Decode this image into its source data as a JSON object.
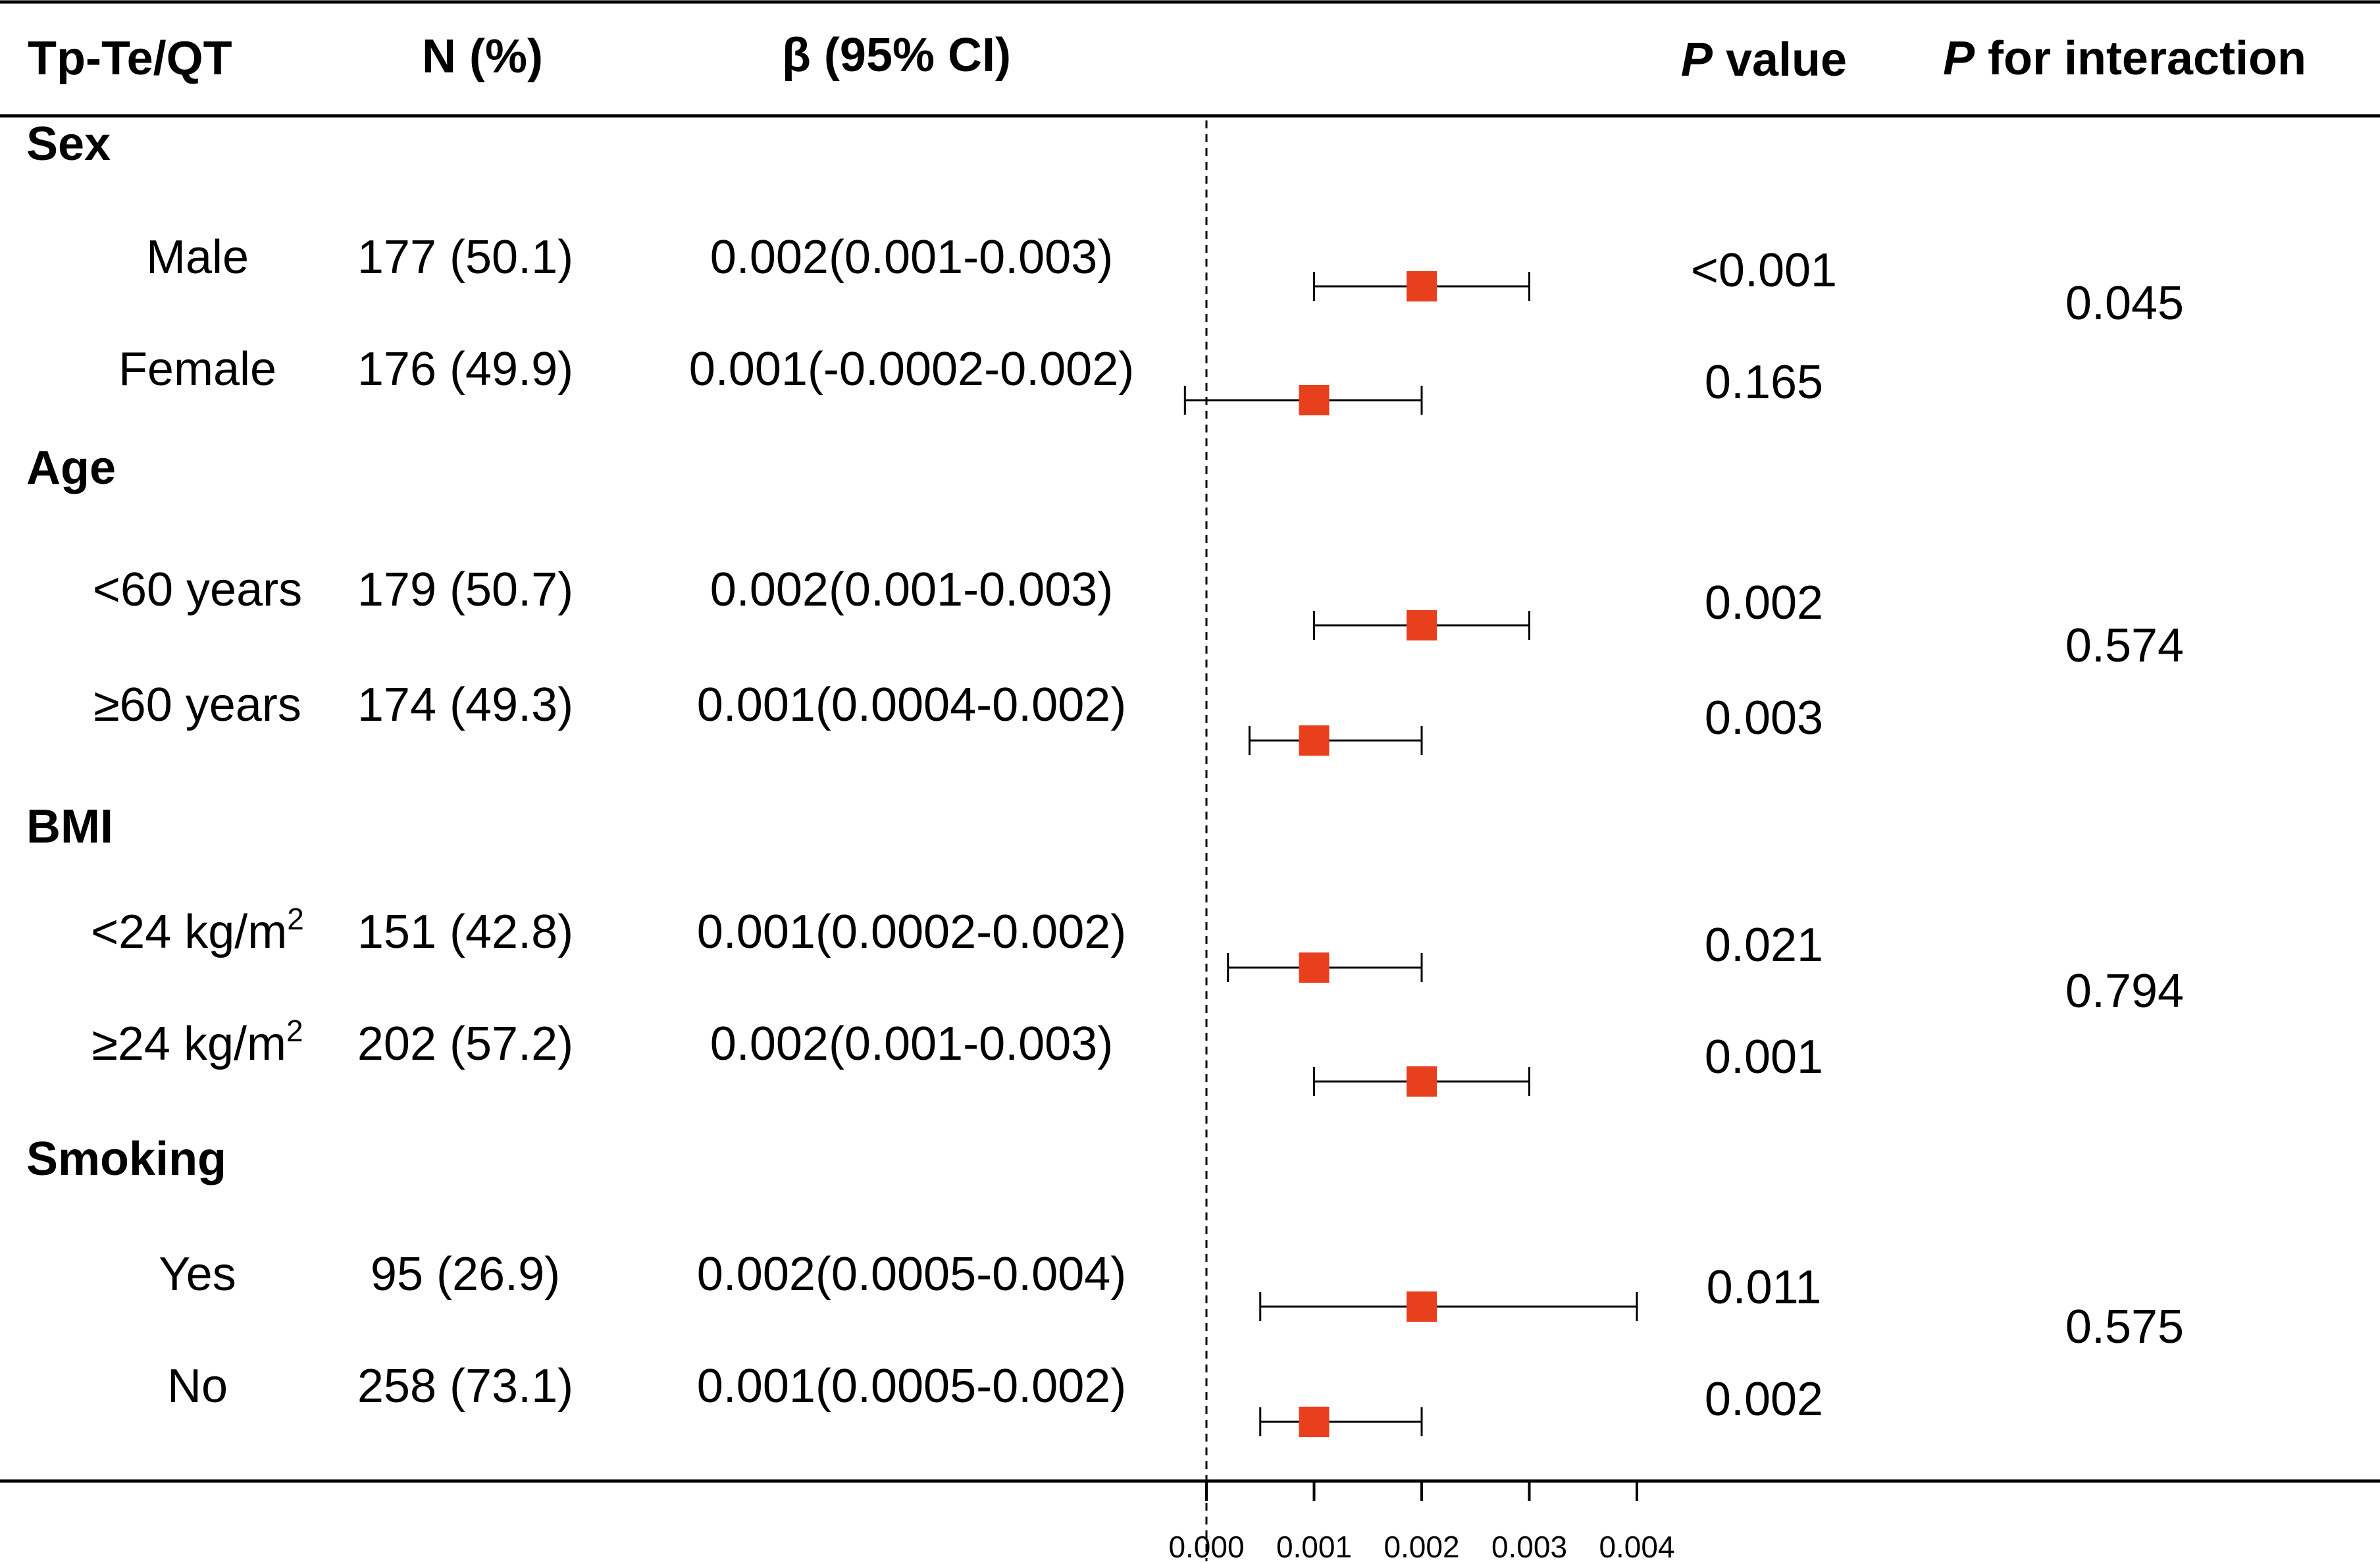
{
  "chart_data": {
    "type": "forest",
    "headers": {
      "label": "Tp-Te/QT",
      "n": "N (%)",
      "beta": "β (95% CI)",
      "p_italic": "P",
      "p_rest": " value",
      "pint_italic": "P",
      "pint_rest": " for interaction"
    },
    "groups": [
      {
        "name": "Sex",
        "p_interaction": "0.045",
        "rows": [
          {
            "label": "Male",
            "n": "177 (50.1)",
            "beta_ci": "0.002(0.001-0.003)",
            "p": "<0.001",
            "estimate": 0.002,
            "lower": 0.001,
            "upper": 0.003
          },
          {
            "label": "Female",
            "n": "176 (49.9)",
            "beta_ci": "0.001(-0.0002-0.002)",
            "p": "0.165",
            "estimate": 0.001,
            "lower": -0.0002,
            "upper": 0.002
          }
        ]
      },
      {
        "name": "Age",
        "p_interaction": "0.574",
        "rows": [
          {
            "label": "<60 years",
            "n": "179 (50.7)",
            "beta_ci": "0.002(0.001-0.003)",
            "p": "0.002",
            "estimate": 0.002,
            "lower": 0.001,
            "upper": 0.003
          },
          {
            "label": "≥60 years",
            "n": "174 (49.3)",
            "beta_ci": "0.001(0.0004-0.002)",
            "p": "0.003",
            "estimate": 0.001,
            "lower": 0.0004,
            "upper": 0.002
          }
        ]
      },
      {
        "name": "BMI",
        "p_interaction": "0.794",
        "rows": [
          {
            "label": "<24 kg/m",
            "label_sup": "2",
            "n": "151 (42.8)",
            "beta_ci": "0.001(0.0002-0.002)",
            "p": "0.021",
            "estimate": 0.001,
            "lower": 0.0002,
            "upper": 0.002
          },
          {
            "label": "≥24 kg/m",
            "label_sup": "2",
            "n": "202 (57.2)",
            "beta_ci": "0.002(0.001-0.003)",
            "p": "0.001",
            "estimate": 0.002,
            "lower": 0.001,
            "upper": 0.003
          }
        ]
      },
      {
        "name": "Smoking",
        "p_interaction": "0.575",
        "rows": [
          {
            "label": "Yes",
            "n": "95 (26.9)",
            "beta_ci": "0.002(0.0005-0.004)",
            "p": "0.011",
            "estimate": 0.002,
            "lower": 0.0005,
            "upper": 0.004
          },
          {
            "label": "No",
            "n": "258 (73.1)",
            "beta_ci": "0.001(0.0005-0.002)",
            "p": "0.002",
            "estimate": 0.001,
            "lower": 0.0005,
            "upper": 0.002
          }
        ]
      }
    ],
    "x_axis": {
      "min": 0.0,
      "max": 0.004,
      "ticks": [
        0.0,
        0.001,
        0.002,
        0.003,
        0.004
      ],
      "tick_labels": [
        "0.000",
        "0.001",
        "0.002",
        "0.003",
        "0.004"
      ],
      "reference_line": 0.0
    },
    "marker_color": "#e8401c",
    "line_color": "#000000"
  }
}
